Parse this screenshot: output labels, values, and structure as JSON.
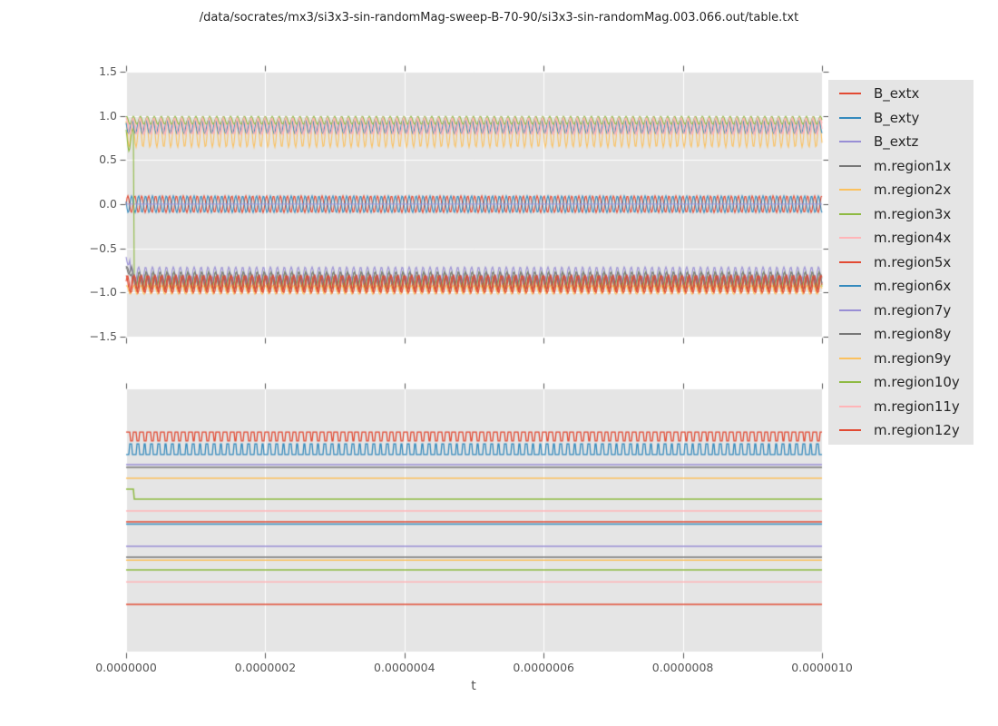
{
  "title": "/data/socrates/mx3/si3x3-sin-randomMag-sweep-B-70-90/si3x3-sin-randomMag.003.066.out/table.txt",
  "xlabel": "t",
  "style": {
    "axes_background": "#e5e5e5",
    "grid_color": "#ffffff",
    "tick_color": "#555555",
    "palette": [
      "#E24A33",
      "#348ABD",
      "#988ED5",
      "#777777",
      "#FBC15E",
      "#8EBA42",
      "#FFB5B8"
    ]
  },
  "legend": {
    "entries": [
      {
        "label": "B_extx",
        "color": "#E24A33"
      },
      {
        "label": "B_exty",
        "color": "#348ABD"
      },
      {
        "label": "B_extz",
        "color": "#988ED5"
      },
      {
        "label": "m.region1x",
        "color": "#777777"
      },
      {
        "label": "m.region2x",
        "color": "#FBC15E"
      },
      {
        "label": "m.region3x",
        "color": "#8EBA42"
      },
      {
        "label": "m.region4x",
        "color": "#FFB5B8"
      },
      {
        "label": "m.region5x",
        "color": "#E24A33"
      },
      {
        "label": "m.region6x",
        "color": "#348ABD"
      },
      {
        "label": "m.region7y",
        "color": "#988ED5"
      },
      {
        "label": "m.region8y",
        "color": "#777777"
      },
      {
        "label": "m.region9y",
        "color": "#FBC15E"
      },
      {
        "label": "m.region10y",
        "color": "#8EBA42"
      },
      {
        "label": "m.region11y",
        "color": "#FFB5B8"
      },
      {
        "label": "m.region12y",
        "color": "#E24A33"
      }
    ]
  },
  "chart_data": [
    {
      "id": "top",
      "type": "line",
      "xlim": [
        0,
        1e-06
      ],
      "ylim": [
        -1.5,
        1.5
      ],
      "grid": true,
      "oscillation_cycles_total": 100.3,
      "yticks": [
        {
          "v": 1.5,
          "label": "1.5"
        },
        {
          "v": 1.0,
          "label": "1.0"
        },
        {
          "v": 0.5,
          "label": "0.5"
        },
        {
          "v": 0.0,
          "label": "0.0"
        },
        {
          "v": -0.5,
          "label": "−0.5"
        },
        {
          "v": -1.0,
          "label": "−1.0"
        },
        {
          "v": -1.5,
          "label": "−1.5"
        }
      ],
      "xticks": [
        {
          "v": 0.0,
          "label": ""
        },
        {
          "v": 2e-07,
          "label": ""
        },
        {
          "v": 4e-07,
          "label": ""
        },
        {
          "v": 6e-07,
          "label": ""
        },
        {
          "v": 8e-07,
          "label": ""
        },
        {
          "v": 1e-06,
          "label": ""
        }
      ],
      "series": [
        {
          "name": "B_extx",
          "color": "#E24A33",
          "kind": "sine",
          "center": 0.0,
          "amp": 0.095,
          "phase": 0.0
        },
        {
          "name": "B_exty",
          "color": "#348ABD",
          "kind": "sine",
          "center": 0.0,
          "amp": 0.095,
          "phase": 2.83
        },
        {
          "name": "B_extz",
          "color": "#988ED5",
          "kind": "sine",
          "center": 0.0,
          "amp": 0.0,
          "phase": 0.0
        },
        {
          "name": "m.region1x",
          "color": "#777777",
          "kind": "sine",
          "segments": [
            {
              "until": 0.008,
              "center": -0.76,
              "amp": 0.05,
              "phase": 0.7
            },
            {
              "until": 1.0,
              "center": -0.88,
              "amp": 0.08,
              "phase": 0.7
            }
          ]
        },
        {
          "name": "m.region2x",
          "color": "#FBC15E",
          "kind": "sine",
          "center": 0.8,
          "amp": 0.155,
          "phase": 2.0
        },
        {
          "name": "m.region3x",
          "color": "#8EBA42",
          "kind": "sine",
          "segments": [
            {
              "until": 0.0105,
              "center": 0.73,
              "amp": 0.13,
              "phase": 2.1
            },
            {
              "until": 1.0,
              "center": -0.86,
              "amp": 0.1,
              "phase": 2.1
            }
          ]
        },
        {
          "name": "m.region4x",
          "color": "#FFB5B8",
          "kind": "sine",
          "center": 0.885,
          "amp": 0.09,
          "phase": 0.9
        },
        {
          "name": "m.region5x",
          "color": "#E24A33",
          "kind": "sine",
          "center": -0.9,
          "amp": 0.095,
          "phase": 1.4
        },
        {
          "name": "m.region6x",
          "color": "#348ABD",
          "kind": "sine",
          "center": 0.875,
          "amp": 0.075,
          "phase": 2.5
        },
        {
          "name": "m.region7y",
          "color": "#988ED5",
          "kind": "sine",
          "segments": [
            {
              "until": 0.006,
              "center": -0.62,
              "amp": 0.07,
              "phase": 2.8
            },
            {
              "until": 1.0,
              "center": -0.8,
              "amp": 0.09,
              "phase": 2.8
            }
          ]
        },
        {
          "name": "m.region8y",
          "color": "#777777",
          "kind": "sine",
          "segments": [
            {
              "until": 0.008,
              "center": -0.74,
              "amp": 0.05,
              "phase": 2.2
            },
            {
              "until": 1.0,
              "center": -0.84,
              "amp": 0.07,
              "phase": 2.2
            }
          ]
        },
        {
          "name": "m.region9y",
          "color": "#FBC15E",
          "kind": "sine",
          "center": -0.97,
          "amp": 0.05,
          "phase": 1.0
        },
        {
          "name": "m.region10y",
          "color": "#8EBA42",
          "kind": "sine",
          "center": 0.95,
          "amp": 0.045,
          "phase": 1.2
        },
        {
          "name": "m.region11y",
          "color": "#FFB5B8",
          "kind": "sine",
          "center": 0.885,
          "amp": 0.095,
          "phase": 1.6
        },
        {
          "name": "m.region12y",
          "color": "#E24A33",
          "kind": "sine",
          "center": -0.905,
          "amp": 0.1,
          "phase": 0.3
        }
      ]
    },
    {
      "id": "bottom",
      "type": "line",
      "xlim": [
        0,
        1e-06
      ],
      "grid": true,
      "oscillation_cycles_total": 100.3,
      "yticks": [],
      "xticks": [
        {
          "v": 0.0,
          "label": "0.0000000"
        },
        {
          "v": 2e-07,
          "label": "0.0000002"
        },
        {
          "v": 4e-07,
          "label": "0.0000004"
        },
        {
          "v": 6e-07,
          "label": "0.0000006"
        },
        {
          "v": 8e-07,
          "label": "0.0000008"
        },
        {
          "v": 1e-06,
          "label": "0.0000010"
        }
      ],
      "series": [
        {
          "name": "B_extx",
          "color": "#E24A33",
          "kind": "square",
          "y_hi": 0.163,
          "y_lo": 0.197,
          "threshold": -0.42,
          "phase": 0.0
        },
        {
          "name": "B_exty",
          "color": "#348ABD",
          "kind": "square",
          "y_hi": 0.208,
          "y_lo": 0.249,
          "threshold": 0.48,
          "phase": 3.64
        },
        {
          "name": "B_extz",
          "color": "#988ED5",
          "kind": "flat",
          "y": 0.287
        },
        {
          "name": "m.region1x",
          "color": "#777777",
          "kind": "flat",
          "y": 0.298
        },
        {
          "name": "m.region2x",
          "color": "#FBC15E",
          "kind": "flat",
          "y": 0.339
        },
        {
          "name": "m.region3x",
          "color": "#8EBA42",
          "kind": "step",
          "y_before": 0.381,
          "y_after": 0.419,
          "t_step": 0.0105
        },
        {
          "name": "m.region4x",
          "color": "#FFB5B8",
          "kind": "flat",
          "y": 0.464
        },
        {
          "name": "m.region5x",
          "color": "#E24A33",
          "kind": "flat",
          "y": 0.505
        },
        {
          "name": "m.region6x",
          "color": "#348ABD",
          "kind": "flat",
          "y": 0.514
        },
        {
          "name": "m.region7y",
          "color": "#988ED5",
          "kind": "flat",
          "y": 0.599
        },
        {
          "name": "m.region8y",
          "color": "#777777",
          "kind": "flat",
          "y": 0.64
        },
        {
          "name": "m.region9y",
          "color": "#FBC15E",
          "kind": "flat",
          "y": 0.651
        },
        {
          "name": "m.region10y",
          "color": "#8EBA42",
          "kind": "flat",
          "y": 0.689
        },
        {
          "name": "m.region11y",
          "color": "#FFB5B8",
          "kind": "flat",
          "y": 0.734
        },
        {
          "name": "m.region12y",
          "color": "#E24A33",
          "kind": "flat",
          "y": 0.82
        }
      ]
    }
  ]
}
